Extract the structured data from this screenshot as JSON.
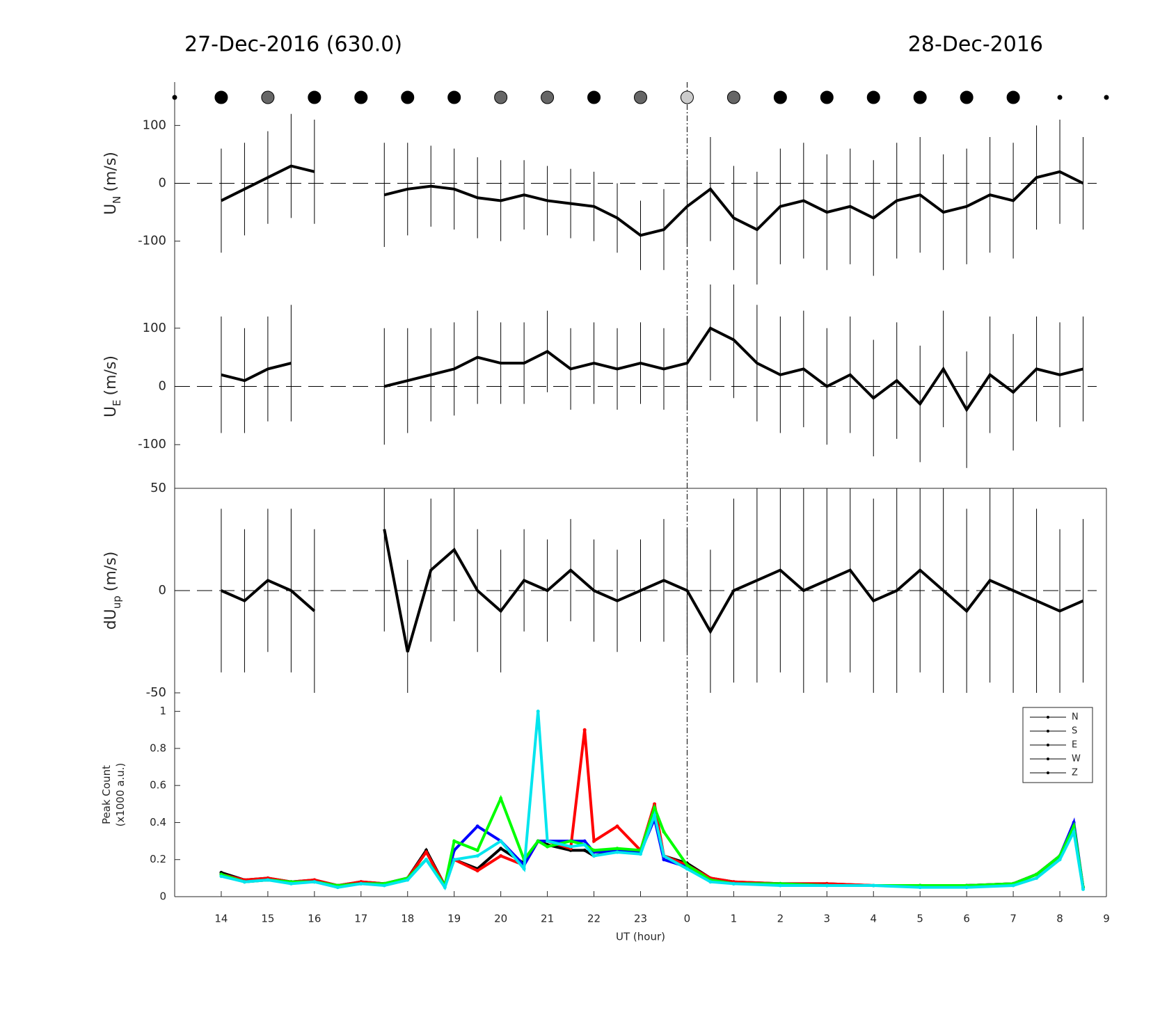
{
  "chart_data": [
    {
      "type": "errorbar",
      "title": "27-Dec-2016 (630.0)",
      "subtitle": "28-Dec-2016",
      "ylabel": {
        "main": "U",
        "sub": "N",
        "unit": "(m/s)"
      },
      "ylim": [
        -175,
        175
      ],
      "yticks": [
        -100,
        0,
        100
      ],
      "markers": {
        "x": [
          13,
          14,
          15,
          16,
          17,
          18,
          19,
          20,
          21,
          22,
          23,
          24,
          25,
          26,
          27,
          28,
          29,
          30,
          31,
          32,
          33
        ],
        "colors": [
          "#000",
          "#000",
          "#666",
          "#000",
          "#000",
          "#000",
          "#000",
          "#666",
          "#666",
          "#000",
          "#666",
          "#ccc",
          "#666",
          "#000",
          "#000",
          "#000",
          "#000",
          "#000",
          "#000",
          "#000",
          "#000"
        ],
        "sizes": [
          3,
          9,
          9,
          9,
          9,
          9,
          9,
          9,
          9,
          9,
          9,
          9,
          9,
          9,
          9,
          9,
          9,
          9,
          9,
          3,
          3
        ]
      },
      "x": [
        14,
        14.5,
        15,
        15.5,
        16,
        16.5,
        17,
        17.5,
        18,
        18.5,
        19,
        19.5,
        20,
        20.5,
        21,
        21.5,
        22,
        22.5,
        23,
        23.5,
        24,
        24.5,
        25,
        25.5,
        26,
        26.5,
        27,
        27.5,
        28,
        28.5,
        29,
        29.5,
        30,
        30.5,
        31,
        31.5,
        32,
        32.5
      ],
      "values": [
        -30,
        -10,
        10,
        30,
        20,
        null,
        null,
        -20,
        -10,
        -5,
        -10,
        -25,
        -30,
        -20,
        -30,
        -35,
        -40,
        -60,
        -90,
        -80,
        -40,
        -10,
        -60,
        -80,
        -40,
        -30,
        -50,
        -40,
        -60,
        -30,
        -20,
        -50,
        -40,
        -20,
        -30,
        10,
        20,
        0
      ],
      "errors": [
        90,
        80,
        80,
        90,
        90,
        null,
        null,
        90,
        80,
        70,
        70,
        70,
        70,
        60,
        60,
        60,
        60,
        60,
        60,
        70,
        70,
        90,
        90,
        100,
        100,
        100,
        100,
        100,
        100,
        100,
        100,
        100,
        100,
        100,
        100,
        90,
        90,
        80
      ]
    },
    {
      "type": "errorbar",
      "ylabel": {
        "main": "U",
        "sub": "E",
        "unit": "(m/s)"
      },
      "ylim": [
        -175,
        175
      ],
      "yticks": [
        -100,
        0,
        100
      ],
      "x": [
        14,
        14.5,
        15,
        15.5,
        16,
        16.5,
        17,
        17.5,
        18,
        18.5,
        19,
        19.5,
        20,
        20.5,
        21,
        21.5,
        22,
        22.5,
        23,
        23.5,
        24,
        24.5,
        25,
        25.5,
        26,
        26.5,
        27,
        27.5,
        28,
        28.5,
        29,
        29.5,
        30,
        30.5,
        31,
        31.5,
        32,
        32.5
      ],
      "values": [
        20,
        10,
        30,
        40,
        null,
        null,
        null,
        0,
        10,
        20,
        30,
        50,
        40,
        40,
        60,
        30,
        40,
        30,
        40,
        30,
        40,
        100,
        80,
        40,
        20,
        30,
        0,
        20,
        -20,
        10,
        -30,
        30,
        -40,
        20,
        -10,
        30,
        20,
        30
      ],
      "errors": [
        100,
        90,
        90,
        100,
        null,
        null,
        null,
        100,
        90,
        80,
        80,
        80,
        70,
        70,
        70,
        70,
        70,
        70,
        70,
        70,
        80,
        90,
        100,
        100,
        100,
        100,
        100,
        100,
        100,
        100,
        100,
        100,
        100,
        100,
        100,
        90,
        90,
        90
      ]
    },
    {
      "type": "errorbar",
      "ylabel": {
        "main": "dU",
        "sub": "up",
        "unit": "(m/s)"
      },
      "ylim": [
        -50,
        50
      ],
      "yticks": [
        -50,
        0,
        50
      ],
      "x": [
        14,
        14.5,
        15,
        15.5,
        16,
        16.5,
        17,
        17.5,
        18,
        18.5,
        19,
        19.5,
        20,
        20.5,
        21,
        21.5,
        22,
        22.5,
        23,
        23.5,
        24,
        24.5,
        25,
        25.5,
        26,
        26.5,
        27,
        27.5,
        28,
        28.5,
        29,
        29.5,
        30,
        30.5,
        31,
        31.5,
        32,
        32.5
      ],
      "values": [
        0,
        -5,
        5,
        0,
        -10,
        null,
        null,
        30,
        -30,
        10,
        20,
        0,
        -10,
        5,
        0,
        10,
        0,
        -5,
        0,
        5,
        0,
        -20,
        0,
        5,
        10,
        0,
        5,
        10,
        -5,
        0,
        10,
        0,
        -10,
        5,
        0,
        -5,
        -10,
        -5
      ],
      "errors": [
        40,
        35,
        35,
        40,
        40,
        null,
        null,
        50,
        45,
        35,
        35,
        30,
        30,
        25,
        25,
        25,
        25,
        25,
        25,
        30,
        30,
        40,
        45,
        50,
        50,
        50,
        50,
        50,
        50,
        50,
        50,
        50,
        50,
        50,
        50,
        45,
        40,
        40
      ]
    },
    {
      "type": "line",
      "ylabel": {
        "main": "Peak Count",
        "unit": "(x1000 a.u.)"
      },
      "xlabel": "UT (hour)",
      "xlim": [
        13,
        33
      ],
      "xticks": [
        14,
        15,
        16,
        17,
        18,
        19,
        20,
        21,
        22,
        23,
        {
          "value": 24,
          "label": "0"
        },
        {
          "value": 25,
          "label": "1"
        },
        {
          "value": 26,
          "label": "2"
        },
        {
          "value": 27,
          "label": "3"
        },
        {
          "value": 28,
          "label": "4"
        },
        {
          "value": 29,
          "label": "5"
        },
        {
          "value": 30,
          "label": "6"
        },
        {
          "value": 31,
          "label": "7"
        },
        {
          "value": 32,
          "label": "8"
        },
        {
          "value": 33,
          "label": "9"
        }
      ],
      "ylim": [
        0,
        1.1
      ],
      "yticks": [
        0,
        0.2,
        0.4,
        0.6,
        0.8,
        1
      ],
      "x": [
        14,
        14.5,
        15,
        15.5,
        16,
        16.5,
        17,
        17.5,
        18,
        18.4,
        18.8,
        19,
        19.5,
        20,
        20.5,
        20.8,
        21,
        21.5,
        21.8,
        22,
        22.5,
        23,
        23.3,
        23.5,
        24,
        24.5,
        25,
        26,
        27,
        28,
        29,
        30,
        31,
        31.5,
        32,
        32.3,
        32.5
      ],
      "series": [
        {
          "name": "N",
          "color": "#000000",
          "values": [
            0.13,
            0.09,
            0.1,
            0.08,
            0.09,
            0.06,
            0.08,
            0.07,
            0.1,
            0.25,
            0.06,
            0.2,
            0.15,
            0.26,
            0.18,
            0.3,
            0.28,
            0.25,
            0.25,
            0.22,
            0.25,
            0.25,
            0.45,
            0.22,
            0.18,
            0.1,
            0.08,
            0.07,
            0.07,
            0.06,
            0.06,
            0.06,
            0.07,
            0.12,
            0.22,
            0.38,
            0.05
          ]
        },
        {
          "name": "S",
          "color": "#ff0000",
          "values": [
            0.12,
            0.09,
            0.1,
            0.08,
            0.09,
            0.06,
            0.08,
            0.07,
            0.1,
            0.24,
            0.06,
            0.2,
            0.14,
            0.22,
            0.17,
            0.3,
            0.3,
            0.26,
            0.9,
            0.3,
            0.38,
            0.25,
            0.5,
            0.22,
            0.17,
            0.1,
            0.08,
            0.07,
            0.07,
            0.06,
            0.06,
            0.06,
            0.07,
            0.12,
            0.22,
            0.38,
            0.05
          ]
        },
        {
          "name": "E",
          "color": "#0000ff",
          "values": [
            0.12,
            0.08,
            0.09,
            0.08,
            0.08,
            0.06,
            0.07,
            0.07,
            0.1,
            0.2,
            0.06,
            0.25,
            0.38,
            0.3,
            0.17,
            0.3,
            0.3,
            0.3,
            0.3,
            0.24,
            0.25,
            0.24,
            0.42,
            0.2,
            0.16,
            0.09,
            0.07,
            0.07,
            0.06,
            0.06,
            0.06,
            0.06,
            0.07,
            0.12,
            0.22,
            0.4,
            0.05
          ]
        },
        {
          "name": "W",
          "color": "#00ff00",
          "values": [
            0.12,
            0.08,
            0.09,
            0.08,
            0.08,
            0.06,
            0.07,
            0.07,
            0.1,
            0.2,
            0.06,
            0.3,
            0.25,
            0.53,
            0.2,
            0.3,
            0.27,
            0.3,
            0.28,
            0.25,
            0.26,
            0.25,
            0.48,
            0.35,
            0.17,
            0.09,
            0.07,
            0.07,
            0.06,
            0.06,
            0.06,
            0.06,
            0.07,
            0.12,
            0.22,
            0.38,
            0.05
          ]
        },
        {
          "name": "Z",
          "color": "#00e5ee",
          "values": [
            0.11,
            0.08,
            0.09,
            0.07,
            0.08,
            0.05,
            0.07,
            0.06,
            0.09,
            0.2,
            0.05,
            0.2,
            0.22,
            0.3,
            0.15,
            1.0,
            0.3,
            0.27,
            0.28,
            0.22,
            0.24,
            0.23,
            0.44,
            0.22,
            0.15,
            0.08,
            0.07,
            0.06,
            0.06,
            0.06,
            0.05,
            0.05,
            0.06,
            0.1,
            0.2,
            0.35,
            0.04
          ]
        }
      ]
    }
  ]
}
